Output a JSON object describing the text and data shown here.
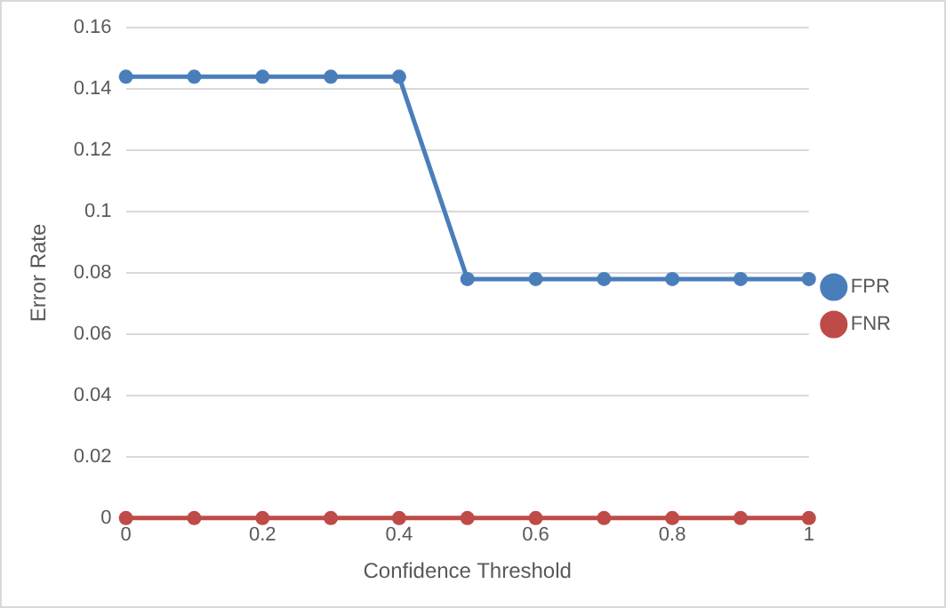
{
  "chart_data": {
    "type": "line",
    "xlabel": "Confidence Threshold",
    "ylabel": "Error Rate",
    "x": [
      0,
      0.1,
      0.2,
      0.3,
      0.4,
      0.5,
      0.6,
      0.7,
      0.8,
      0.9,
      1
    ],
    "series": [
      {
        "name": "FPR",
        "color": "#4a7ebb",
        "values": [
          0.144,
          0.144,
          0.144,
          0.144,
          0.144,
          0.078,
          0.078,
          0.078,
          0.078,
          0.078,
          0.078
        ]
      },
      {
        "name": "FNR",
        "color": "#be4b48",
        "values": [
          0,
          0,
          0,
          0,
          0,
          0,
          0,
          0,
          0,
          0,
          0
        ]
      }
    ],
    "xlim": [
      0,
      1
    ],
    "xticks": [
      0,
      0.2,
      0.4,
      0.6,
      0.8,
      1
    ],
    "ylim": [
      0,
      0.16
    ],
    "yticks": [
      0,
      0.02,
      0.04,
      0.06,
      0.08,
      0.1,
      0.12,
      0.14,
      0.16
    ],
    "grid": "y",
    "legend": "right",
    "marker": "circle",
    "line_style": "solid"
  }
}
